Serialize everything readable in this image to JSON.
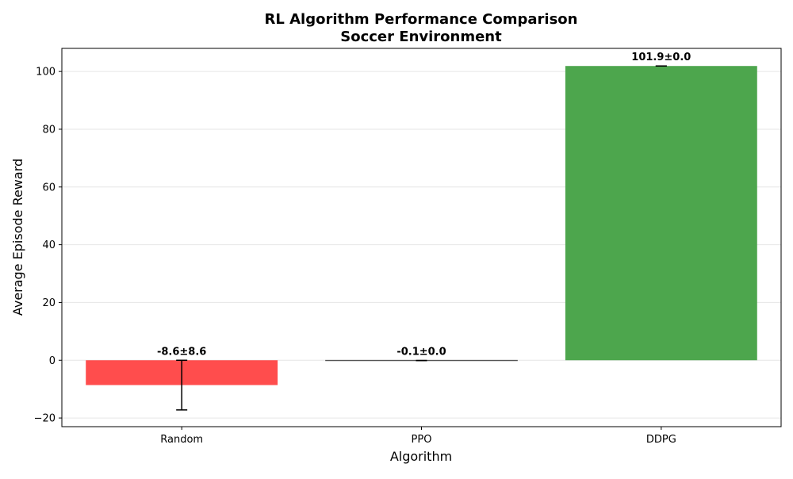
{
  "chart_data": {
    "type": "bar",
    "title": "RL Algorithm Performance Comparison\nSoccer Environment",
    "title_lines": [
      "RL Algorithm Performance Comparison",
      "Soccer Environment"
    ],
    "xlabel": "Algorithm",
    "ylabel": "Average Episode Reward",
    "categories": [
      "Random",
      "PPO",
      "DDPG"
    ],
    "values": [
      -8.6,
      -0.1,
      101.9
    ],
    "errors": [
      8.6,
      0.0,
      0.0
    ],
    "bar_labels": [
      "-8.6±8.6",
      "-0.1±0.0",
      "101.9±0.0"
    ],
    "colors": [
      "#ff4d4d",
      "#4d4dff",
      "#4da64d"
    ],
    "ylim": [
      -23,
      108
    ],
    "yticks": [
      -20,
      0,
      20,
      40,
      60,
      80,
      100
    ],
    "ytick_labels": [
      "−20",
      "0",
      "20",
      "40",
      "60",
      "80",
      "100"
    ],
    "grid": "y"
  }
}
